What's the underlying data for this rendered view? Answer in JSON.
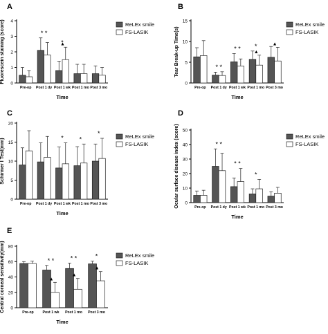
{
  "chart_data": [
    {
      "panel": "A",
      "type": "bar",
      "ylabel": "Fluorescein staining (score)",
      "xlabel": "Time",
      "ylim": [
        0,
        4
      ],
      "yticks": [
        "0",
        "1",
        "2",
        "3",
        "4"
      ],
      "categories": [
        "Pre-op",
        "Post 1 dy",
        "Post 1 wk",
        "Post 1 mo",
        "Post 3 mo"
      ],
      "series": [
        {
          "name": "ReLEx smile",
          "values": [
            0.5,
            2.1,
            0.8,
            0.6,
            0.6
          ],
          "errors": [
            0.5,
            0.8,
            0.6,
            0.6,
            0.5
          ]
        },
        {
          "name": "FS-LASIK",
          "values": [
            0.4,
            1.8,
            1.5,
            0.6,
            0.5
          ],
          "errors": [
            0.4,
            0.8,
            0.8,
            0.6,
            0.5
          ]
        }
      ],
      "annotations": [
        {
          "category": 1,
          "text": "* *"
        },
        {
          "category": 2,
          "text": "*"
        },
        {
          "category": 2,
          "text": "▲"
        }
      ],
      "legend": "top-right"
    },
    {
      "panel": "B",
      "type": "bar",
      "ylabel": "Tear Break-up Time(s)",
      "xlabel": "Time",
      "ylim": [
        0,
        15
      ],
      "yticks": [
        "0",
        "5",
        "10",
        "15"
      ],
      "categories": [
        "Pre-op",
        "Post 1 dy",
        "Post 1 wk",
        "Post 1 mo",
        "Post 3 mo"
      ],
      "series": [
        {
          "name": "ReLEx smile",
          "values": [
            6.3,
            1.9,
            5.1,
            5.7,
            6.2
          ],
          "errors": [
            2.2,
            0.7,
            2.0,
            2.0,
            2.6
          ]
        },
        {
          "name": "FS-LASIK",
          "values": [
            6.6,
            1.8,
            4.1,
            4.3,
            5.3
          ],
          "errors": [
            3.6,
            0.9,
            1.7,
            2.4,
            3.3
          ]
        }
      ],
      "annotations": [
        {
          "category": 1,
          "text": "* *"
        },
        {
          "category": 2,
          "text": "* *"
        },
        {
          "category": 3,
          "text": "*"
        },
        {
          "category": 3,
          "text": "▲"
        },
        {
          "category": 4,
          "text": "▲"
        }
      ],
      "legend": "top-right"
    },
    {
      "panel": "C",
      "type": "bar",
      "ylabel": "Schirmer I Test(mm)",
      "xlabel": "Time",
      "ylim": [
        0,
        20
      ],
      "yticks": [
        "0",
        "5",
        "10",
        "15",
        "20"
      ],
      "categories": [
        "Pre-op",
        "Post 1 dy",
        "Post 1 wk",
        "Post 1 mo",
        "Post 3 mo"
      ],
      "series": [
        {
          "name": "ReLEx smile",
          "values": [
            9.0,
            9.8,
            8.2,
            8.8,
            10.0
          ],
          "errors": [
            4.5,
            5.0,
            5.5,
            5.0,
            4.5
          ]
        },
        {
          "name": "FS-LASIK",
          "values": [
            12.7,
            11.0,
            9.3,
            9.5,
            10.7
          ],
          "errors": [
            5.3,
            5.5,
            5.5,
            5.0,
            5.3
          ]
        }
      ],
      "annotations": [
        {
          "category": 2,
          "text": "*"
        },
        {
          "category": 3,
          "text": "*"
        },
        {
          "category": 4,
          "text": "*"
        }
      ],
      "legend": "top-right"
    },
    {
      "panel": "D",
      "type": "bar",
      "ylabel": "Ocular surface disease index (score)",
      "xlabel": "Time",
      "ylim": [
        0,
        50
      ],
      "yticks": [
        "0",
        "10",
        "20",
        "30",
        "40",
        "50"
      ],
      "categories": [
        "Pre-op",
        "Post 1 dy",
        "Post 1 wk",
        "Post 1 mo",
        "Post 3 mo"
      ],
      "series": [
        {
          "name": "ReLEx smile",
          "values": [
            5.0,
            25.0,
            11.0,
            6.0,
            4.5
          ],
          "errors": [
            3.0,
            12.0,
            6.0,
            3.5,
            3.0
          ]
        },
        {
          "name": "FS-LASIK",
          "values": [
            5.0,
            22.0,
            14.5,
            9.5,
            6.5
          ],
          "errors": [
            3.5,
            12.0,
            9.0,
            6.5,
            4.0
          ]
        }
      ],
      "annotations": [
        {
          "category": 1,
          "text": "* *"
        },
        {
          "category": 2,
          "text": "* *"
        },
        {
          "category": 3,
          "text": "*"
        }
      ],
      "legend": "top-right"
    },
    {
      "panel": "E",
      "type": "bar",
      "ylabel": "Central corneal sensitivity(mm)",
      "xlabel": "Time",
      "ylim": [
        0,
        80
      ],
      "yticks": [
        "0",
        "20",
        "40",
        "60",
        "80"
      ],
      "categories": [
        "Pre-op",
        "Post 1 wk",
        "Post 1 mo",
        "Post 3 mo"
      ],
      "series": [
        {
          "name": "ReLEx smile",
          "values": [
            57.5,
            49.0,
            51.0,
            57.0
          ],
          "errors": [
            2.5,
            6.0,
            7.0,
            3.5
          ]
        },
        {
          "name": "FS-LASIK",
          "values": [
            57.5,
            20.0,
            24.0,
            35.0
          ],
          "errors": [
            3.0,
            13.0,
            14.0,
            12.0
          ]
        }
      ],
      "annotations": [
        {
          "category": 1,
          "text": "* *"
        },
        {
          "category": 1,
          "text": "▲"
        },
        {
          "category": 2,
          "text": "* *"
        },
        {
          "category": 2,
          "text": "▲"
        },
        {
          "category": 3,
          "text": "*"
        },
        {
          "category": 3,
          "text": "▲"
        }
      ],
      "legend": "top-right"
    }
  ],
  "colors": {
    "relex": "#555555",
    "lasik": "#ffffff",
    "axis": "#000000"
  }
}
